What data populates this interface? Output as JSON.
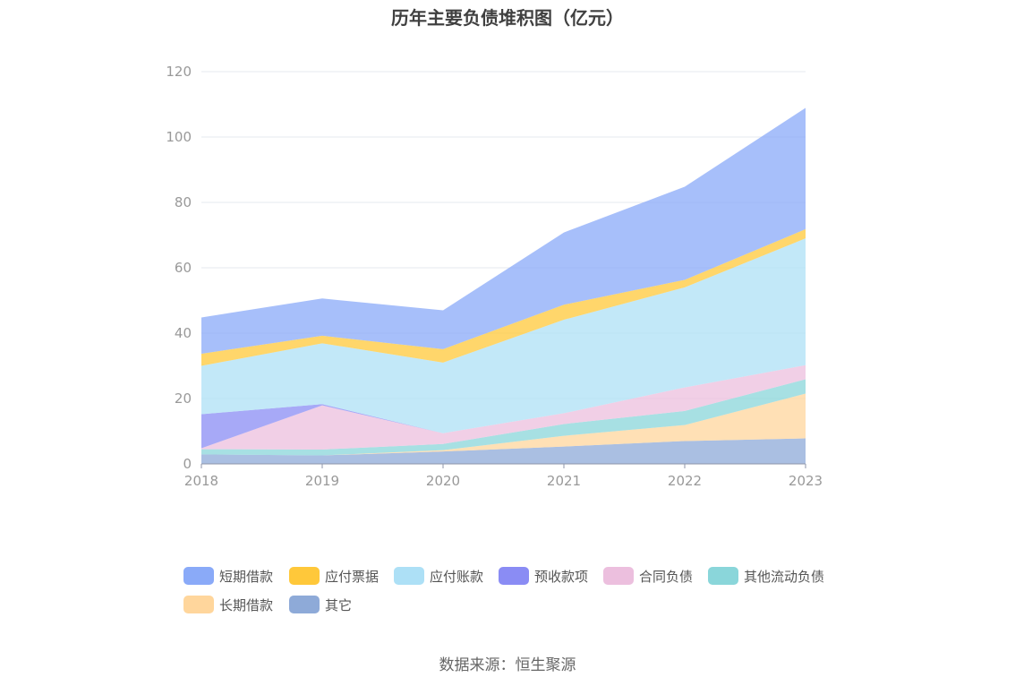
{
  "title": "历年主要负债堆积图（亿元）",
  "source": "数据来源：恒生聚源",
  "chart_data": {
    "type": "area",
    "stacked": true,
    "title": "历年主要负债堆积图（亿元）",
    "xlabel": "",
    "ylabel": "",
    "categories": [
      "2018",
      "2019",
      "2020",
      "2021",
      "2022",
      "2023"
    ],
    "ylim": [
      0,
      120
    ],
    "yticks": [
      0,
      20,
      40,
      60,
      80,
      100,
      120
    ],
    "grid": true,
    "legend_position": "bottom",
    "series": [
      {
        "name": "其它",
        "color": "#8eaad8",
        "values": [
          2.9,
          2.6,
          3.8,
          5.3,
          7.0,
          7.8
        ]
      },
      {
        "name": "长期借款",
        "color": "#ffd69c",
        "values": [
          0,
          0,
          0.4,
          3.3,
          4.9,
          13.7
        ]
      },
      {
        "name": "其他流动负债",
        "color": "#8ad6da",
        "values": [
          1.6,
          1.8,
          1.9,
          3.6,
          4.3,
          4.4
        ]
      },
      {
        "name": "合同负债",
        "color": "#ecbfde",
        "values": [
          0.3,
          13.5,
          3.3,
          3.3,
          7.2,
          4.3
        ]
      },
      {
        "name": "预收款项",
        "color": "#8a8cf4",
        "values": [
          10.4,
          0.4,
          0,
          0,
          0,
          0
        ]
      },
      {
        "name": "应付账款",
        "color": "#ade0f6",
        "values": [
          14.8,
          18.6,
          21.6,
          28.6,
          30.6,
          38.8
        ]
      },
      {
        "name": "应付票据",
        "color": "#ffc83a",
        "values": [
          3.7,
          2.3,
          4.1,
          4.6,
          2.3,
          2.8
        ]
      },
      {
        "name": "短期借款",
        "color": "#8aaaf8",
        "values": [
          11.1,
          11.4,
          11.9,
          22.1,
          28.5,
          37.1
        ]
      }
    ],
    "legend_order": [
      "短期借款",
      "应付票据",
      "应付账款",
      "预收款项",
      "合同负债",
      "其他流动负债",
      "长期借款",
      "其它"
    ]
  }
}
